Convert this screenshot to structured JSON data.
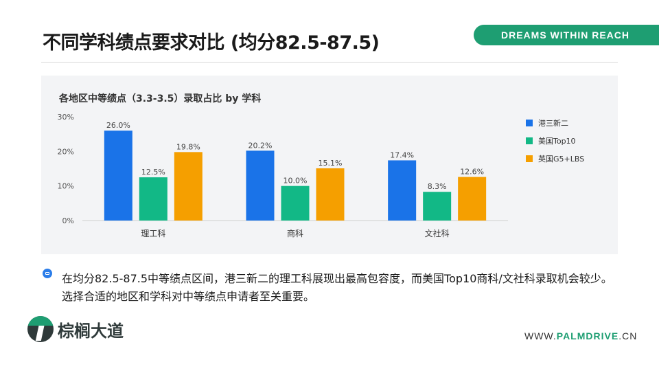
{
  "page": {
    "title": "不同学科绩点要求对比 (均分82.5-87.5)",
    "brand_tag": "DREAMS WITHIN REACH",
    "note": "在均分82.5-87.5中等绩点区间，港三新二的理工科展现出最高包容度，而美国Top10商科/文社科录取机会较少。选择合适的地区和学科对中等绩点申请者至关重要。",
    "logo_text": "棕榈大道",
    "website_prefix": "WWW.",
    "website_brand": "PALMDRIVE",
    "website_suffix": ".CN"
  },
  "colors": {
    "brand_green": "#1e9e72",
    "panel_bg": "#f3f4f6"
  },
  "chart_data": {
    "type": "bar",
    "title": "各地区中等绩点（3.3-3.5）录取占比 by 学科",
    "categories": [
      "理工科",
      "商科",
      "文社科"
    ],
    "series": [
      {
        "name": "港三新二",
        "color": "#1a73e8",
        "values": [
          26.0,
          20.2,
          17.4
        ]
      },
      {
        "name": "美国Top10",
        "color": "#12b886",
        "values": [
          12.5,
          10.0,
          8.3
        ]
      },
      {
        "name": "英国G5+LBS",
        "color": "#f59f00",
        "values": [
          19.8,
          15.1,
          12.6
        ]
      }
    ],
    "value_labels": [
      [
        "26.0%",
        "20.2%",
        "17.4%"
      ],
      [
        "12.5%",
        "10.0%",
        "8.3%"
      ],
      [
        "19.8%",
        "15.1%",
        "12.6%"
      ]
    ],
    "y_ticks": [
      "0%",
      "10%",
      "20%",
      "30%"
    ],
    "ylim": [
      0,
      30
    ],
    "legend_position": "right",
    "grid": false
  }
}
